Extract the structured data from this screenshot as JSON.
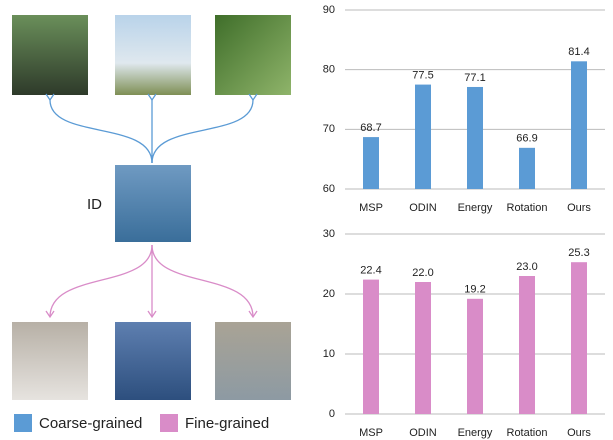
{
  "diagram": {
    "label": "ID"
  },
  "chart_data": [
    {
      "type": "bar",
      "categories": [
        "MSP",
        "ODIN",
        "Energy",
        "Rotation",
        "Ours"
      ],
      "series": [
        {
          "name": "Coarse-grained",
          "color": "#5b9bd5",
          "values": [
            68.7,
            77.5,
            77.1,
            66.9,
            81.4
          ]
        }
      ],
      "ylim": [
        60,
        90
      ],
      "yticks": [
        60,
        70,
        80,
        90
      ],
      "grid": true
    },
    {
      "type": "bar",
      "categories": [
        "MSP",
        "ODIN",
        "Energy",
        "Rotation",
        "Ours"
      ],
      "series": [
        {
          "name": "Fine-grained",
          "color": "#d98cc8",
          "values": [
            22.4,
            22.0,
            19.2,
            23.0,
            25.3
          ],
          "value_labels": [
            "22.4",
            "22.0",
            "19.2",
            "23.0",
            "25.3"
          ]
        }
      ],
      "ylim": [
        0,
        30
      ],
      "yticks": [
        0,
        10,
        20,
        30
      ],
      "grid": true
    }
  ]
}
